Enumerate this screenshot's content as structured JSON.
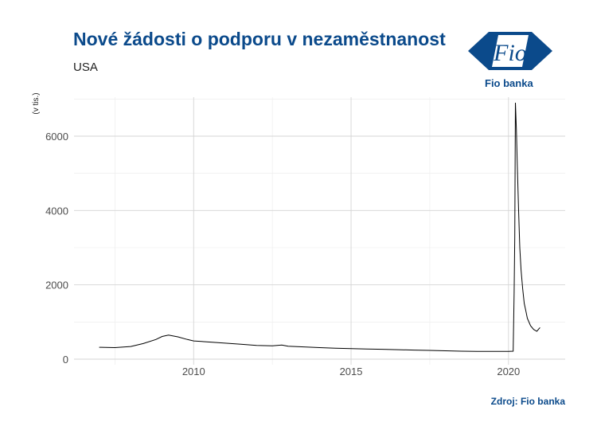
{
  "header": {
    "title": "Nové žádosti o podporu v nezaměstnanost",
    "subtitle": "USA"
  },
  "logo": {
    "monogram": "Fio",
    "label": "Fio banka"
  },
  "source": "Zdroj: Fio banka",
  "colors": {
    "brand": "#0b4a8b",
    "line": "#000000",
    "grid": "#d9d9d9"
  },
  "chart_data": {
    "type": "line",
    "ylabel": "(v tis.)",
    "xlim": [
      2006.2,
      2021.8
    ],
    "ylim": [
      -150,
      7050
    ],
    "x_ticks": [
      2010,
      2015,
      2020
    ],
    "y_ticks": [
      0,
      2000,
      4000,
      6000
    ],
    "x_tick_labels": [
      "2010",
      "2015",
      "2020"
    ],
    "y_tick_labels": [
      "0",
      "2000",
      "4000",
      "6000"
    ],
    "grid": true,
    "series": [
      {
        "name": "",
        "x": [
          2007.0,
          2007.5,
          2008.0,
          2008.4,
          2008.8,
          2009.0,
          2009.2,
          2009.5,
          2009.8,
          2010.0,
          2010.5,
          2011.0,
          2011.5,
          2012.0,
          2012.5,
          2012.8,
          2013.0,
          2013.5,
          2014.0,
          2014.5,
          2015.0,
          2015.5,
          2016.0,
          2016.5,
          2017.0,
          2017.5,
          2018.0,
          2018.5,
          2019.0,
          2019.5,
          2020.0,
          2020.15,
          2020.18,
          2020.2,
          2020.22,
          2020.25,
          2020.28,
          2020.32,
          2020.36,
          2020.4,
          2020.45,
          2020.5,
          2020.55,
          2020.6,
          2020.7,
          2020.8,
          2020.9,
          2021.0
        ],
        "y": [
          320,
          310,
          340,
          420,
          530,
          610,
          650,
          600,
          530,
          490,
          460,
          430,
          400,
          370,
          360,
          380,
          350,
          330,
          310,
          295,
          285,
          275,
          265,
          255,
          245,
          235,
          225,
          215,
          210,
          210,
          210,
          215,
          1800,
          3300,
          6900,
          6200,
          5200,
          4000,
          3000,
          2400,
          1900,
          1500,
          1300,
          1100,
          900,
          800,
          750,
          850
        ]
      }
    ]
  }
}
